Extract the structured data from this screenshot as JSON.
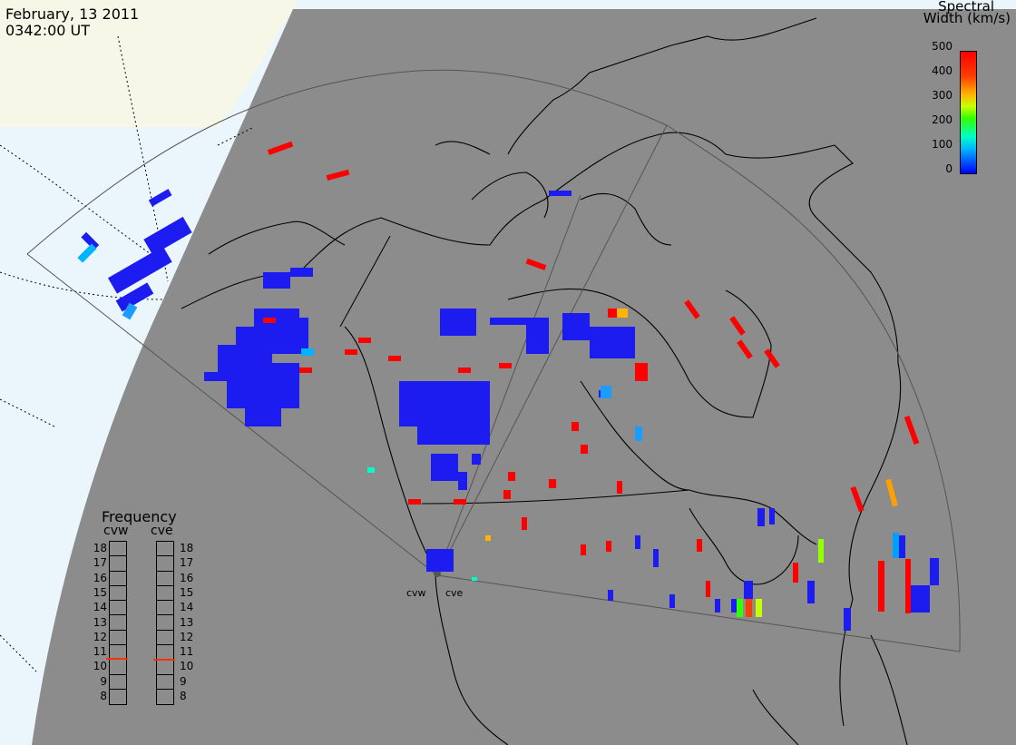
{
  "header": {
    "date": "February, 13 2011",
    "time": "0342:00 UT"
  },
  "colorbar": {
    "title_line1": "Spectral",
    "title_line2": "Width (km/s)",
    "ticks": [
      "500",
      "400",
      "300",
      "200",
      "100",
      "0"
    ],
    "range": [
      0,
      500
    ],
    "colors": [
      "#0000ff",
      "#00b4ff",
      "#00ffc8",
      "#32ff00",
      "#c8ff00",
      "#ffb400",
      "#ff3c00",
      "#ff0000"
    ]
  },
  "frequency": {
    "title": "Frequency",
    "radars": [
      {
        "name": "cvw",
        "value": 10.6
      },
      {
        "name": "cve",
        "value": 10.5
      }
    ],
    "scale_labels": [
      "18",
      "17",
      "16",
      "15",
      "14",
      "13",
      "12",
      "11",
      "10",
      "9",
      "8"
    ],
    "range": [
      8,
      18
    ]
  },
  "stations": {
    "cvw": "cvw",
    "cve": "cve"
  },
  "map_colors": {
    "night": "#8c8c8c",
    "day_ocean": "#eaf6fc",
    "day_land": "#f7f7e8",
    "echo_low": "#1c1cf0",
    "echo_high": "#ff0000"
  }
}
